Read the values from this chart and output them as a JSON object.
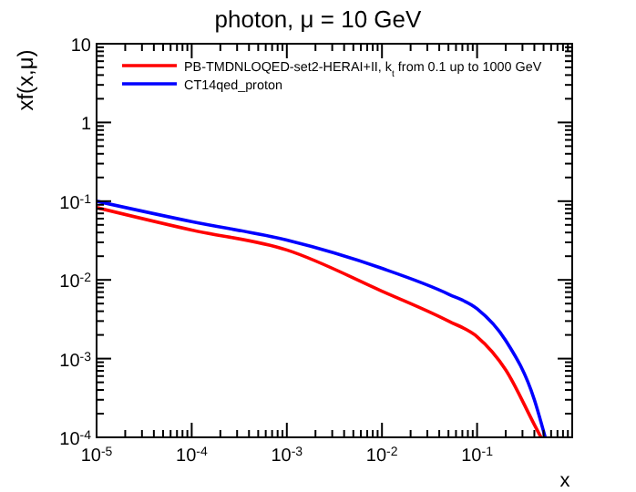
{
  "chart_data": {
    "type": "line",
    "title": "photon, μ = 10 GeV",
    "xlabel": "x",
    "ylabel": "xf(x,μ)",
    "log": "xy",
    "xlim": [
      1e-05,
      1
    ],
    "ylim": [
      0.0001,
      10
    ],
    "xticks": [
      {
        "value": 1e-05,
        "label": "10$^{-5}$"
      },
      {
        "value": 0.0001,
        "label": "10$^{-4}$"
      },
      {
        "value": 0.001,
        "label": "10$^{-3}$"
      },
      {
        "value": 0.01,
        "label": "10$^{-2}$"
      },
      {
        "value": 0.1,
        "label": "10$^{-1}$"
      },
      {
        "value": 1,
        "label": null
      }
    ],
    "yticks": [
      {
        "value": 0.0001,
        "label": "10$^{-4}$"
      },
      {
        "value": 0.001,
        "label": "10$^{-3}$"
      },
      {
        "value": 0.01,
        "label": "10$^{-2}$"
      },
      {
        "value": 0.1,
        "label": "10$^{-1}$"
      },
      1,
      10
    ],
    "legend": "top",
    "grid": false,
    "line_style": "solid",
    "marker": "none",
    "series": [
      {
        "name": "PB-TMDNLOQED-set2-HERAI+II, k$_{t}$ from 0.1 up to 1000 GeV",
        "color": "#ff0000",
        "x": [
          1e-05,
          0.0001,
          0.001,
          0.01,
          0.05,
          0.1,
          0.2,
          0.4,
          0.47
        ],
        "values": [
          0.083,
          0.043,
          0.024,
          0.0072,
          0.003,
          0.0019,
          0.00072,
          0.000145,
          0.0001
        ]
      },
      {
        "name": "CT14qed_proton",
        "color": "#0000ff",
        "x": [
          1e-05,
          0.0001,
          0.001,
          0.01,
          0.05,
          0.1,
          0.2,
          0.4,
          0.52
        ],
        "values": [
          0.1,
          0.055,
          0.032,
          0.014,
          0.0066,
          0.0043,
          0.0017,
          0.0003,
          0.0001
        ]
      }
    ]
  }
}
